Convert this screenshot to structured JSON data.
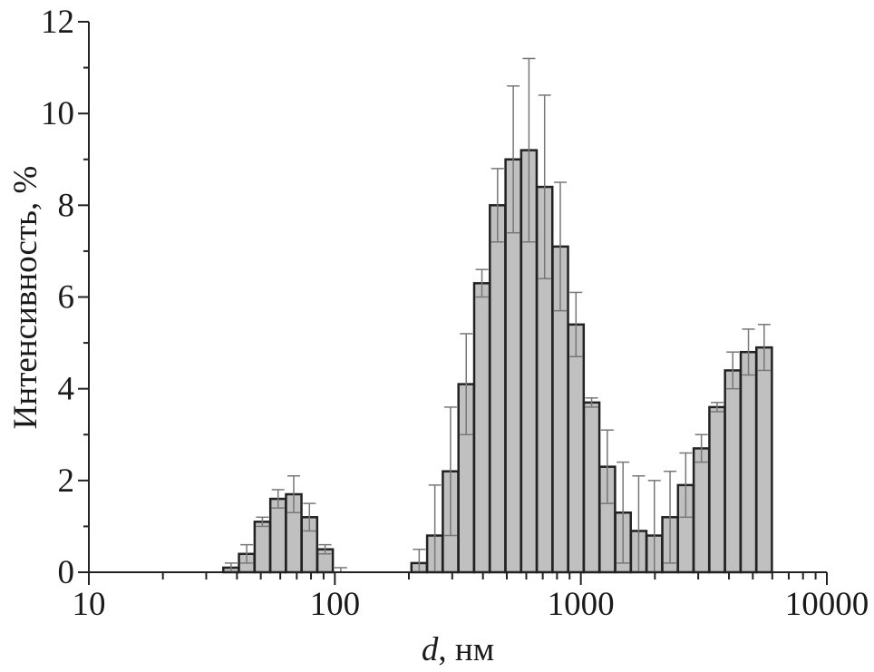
{
  "chart_data": {
    "type": "bar",
    "title": "",
    "xlabel_var": "d",
    "xlabel_unit": ", нм",
    "ylabel": "Интенсивность, %",
    "xscale": "log",
    "xlim": [
      10,
      10000
    ],
    "ylim": [
      0,
      12
    ],
    "x_ticks": [
      "10",
      "100",
      "1000",
      "10000"
    ],
    "y_ticks": [
      "0",
      "2",
      "4",
      "6",
      "8",
      "10",
      "12"
    ],
    "grid": false,
    "legend": "none",
    "colors": {
      "bar_fill": "#c0c0c0",
      "bar_edge": "#222222",
      "error_bar": "#777777"
    },
    "x": [
      37.84,
      43.82,
      50.75,
      58.77,
      68.06,
      78.82,
      91.28,
      105.7,
      220.2,
      255.0,
      295.3,
      342.0,
      396.1,
      458.7,
      531.2,
      615.1,
      712.4,
      825.0,
      955.4,
      1106,
      1281,
      1484,
      1718,
      1990,
      2305,
      2669,
      3091,
      3580,
      4145,
      4801,
      5560
    ],
    "values": [
      0.1,
      0.4,
      1.1,
      1.6,
      1.7,
      1.2,
      0.5,
      0.0,
      0.2,
      0.8,
      2.2,
      4.1,
      6.3,
      8.0,
      9.0,
      9.2,
      8.4,
      7.1,
      5.4,
      3.7,
      2.3,
      1.3,
      0.9,
      0.8,
      1.2,
      1.9,
      2.7,
      3.6,
      4.4,
      4.8,
      4.9
    ],
    "errors": [
      0.1,
      0.2,
      0.1,
      0.2,
      0.4,
      0.3,
      0.1,
      0.1,
      0.3,
      1.1,
      1.4,
      1.1,
      0.3,
      0.8,
      1.6,
      2.0,
      2.0,
      1.4,
      0.7,
      0.1,
      0.8,
      1.1,
      1.2,
      1.2,
      1.0,
      0.7,
      0.3,
      0.1,
      0.4,
      0.5,
      0.5
    ]
  }
}
